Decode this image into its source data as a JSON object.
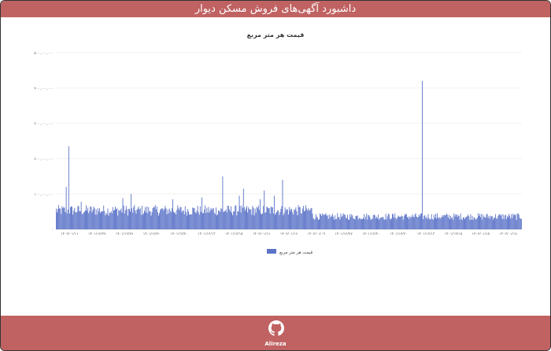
{
  "header": {
    "title": "داشبورد آگهی‌های فروش مسکن دیوار"
  },
  "chart_data": {
    "type": "bar",
    "title": "قیمت هر متر مربع",
    "legend": "قیمت هر متر مربع",
    "legend_position": "bottom-center",
    "grid": true,
    "color": "#5b73c8",
    "ylim": [
      0,
      500000000
    ],
    "yticks": [
      "۰",
      "۱۰۰,۰۰۰,۰۰۰",
      "۲۰۰,۰۰۰,۰۰۰",
      "۳۰۰,۰۰۰,۰۰۰",
      "۴۰۰,۰۰۰,۰۰۰",
      "۵۰۰,۰۰۰,۰۰۰"
    ],
    "ytick_values": [
      0,
      100000000,
      200000000,
      300000000,
      400000000,
      500000000
    ],
    "xticks": [
      "۱۴۰۲/۰۱/۱۱",
      "۱۴۰۱/۱۲/۲۷",
      "۱۴۰۱/۱۲/۲۷",
      "۱۴۰۱/۱۲/۲۰",
      "۱۴۰۱/۱۲/۲۰",
      "۱۴۰۱/۱۲/۱۳",
      "۱۴۰۱/۱۲/۱۵",
      "۱۴۰۲/۰۱/۱۶",
      "۱۴۰۲/۰۱/۱۶",
      "۱۴۰۲/۰۱/۰۹",
      "۱۴۰۱/۱۲/۲۷",
      "۱۴۰۱/۱۲/۲۰",
      "۱۴۰۱/۱۲/۲۰",
      "۱۴۰۱/۱۲/۱۳",
      "۱۴۰۱/۱۲/۱۵",
      "۱۴۰۲/۰۱/۱۵",
      "۱۴۰۲/۰۱/۱۸"
    ],
    "baseline_level": 55000000,
    "bar_count": 560,
    "spikes": [
      {
        "index": 12,
        "value": 120000000
      },
      {
        "index": 15,
        "value": 235000000
      },
      {
        "index": 30,
        "value": 78000000
      },
      {
        "index": 80,
        "value": 88000000
      },
      {
        "index": 90,
        "value": 100000000
      },
      {
        "index": 140,
        "value": 85000000
      },
      {
        "index": 175,
        "value": 90000000
      },
      {
        "index": 200,
        "value": 150000000
      },
      {
        "index": 220,
        "value": 95000000
      },
      {
        "index": 225,
        "value": 115000000
      },
      {
        "index": 245,
        "value": 85000000
      },
      {
        "index": 250,
        "value": 110000000
      },
      {
        "index": 262,
        "value": 95000000
      },
      {
        "index": 272,
        "value": 140000000
      },
      {
        "index": 440,
        "value": 420000000
      }
    ]
  },
  "footer": {
    "icon": "github-icon",
    "label": "Alireza"
  }
}
